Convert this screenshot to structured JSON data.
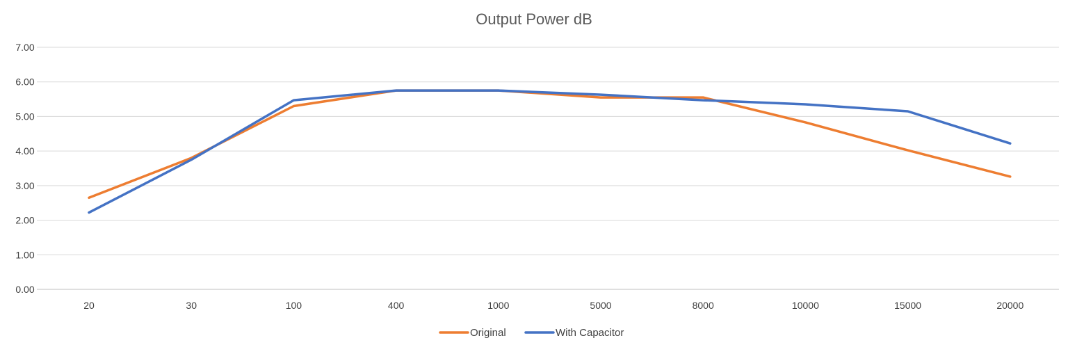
{
  "chart_data": {
    "type": "line",
    "title": "Output  Power dB",
    "xlabel": "",
    "ylabel": "",
    "categories": [
      "20",
      "30",
      "100",
      "400",
      "1000",
      "5000",
      "8000",
      "10000",
      "15000",
      "20000"
    ],
    "ylim": [
      0,
      7
    ],
    "y_ticks": [
      "0.00",
      "1.00",
      "2.00",
      "3.00",
      "4.00",
      "5.00",
      "6.00",
      "7.00"
    ],
    "grid": "horizontal",
    "legend_position": "bottom",
    "series": [
      {
        "name": "Original",
        "color": "#ED7D31",
        "values": [
          2.65,
          3.8,
          5.3,
          5.75,
          5.75,
          5.55,
          5.55,
          4.83,
          4.02,
          3.26
        ]
      },
      {
        "name": "With Capacitor",
        "color": "#4472C4",
        "values": [
          2.22,
          3.75,
          5.47,
          5.75,
          5.75,
          5.63,
          5.47,
          5.35,
          5.15,
          4.22
        ]
      }
    ]
  }
}
